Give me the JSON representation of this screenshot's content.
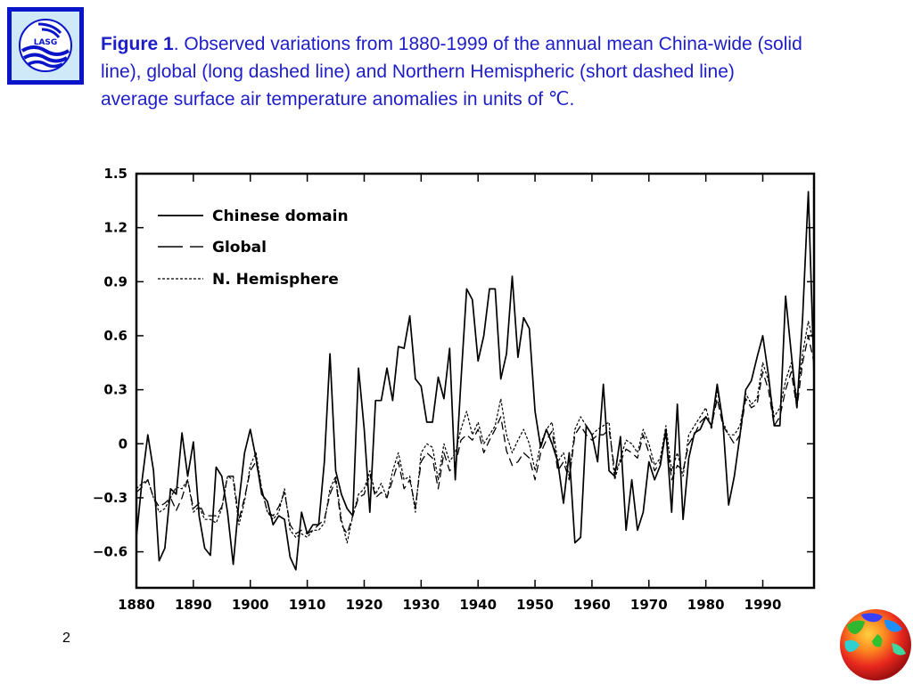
{
  "logo": {
    "text": "LASG"
  },
  "caption": {
    "bold": "Figure 1",
    "text": ". Observed variations from 1880-1999 of the annual mean China-wide (solid line), global (long dashed line) and Northern Hemispheric (short dashed line) average surface air temperature anomalies in units of ℃."
  },
  "slide_number": "2",
  "globe": {
    "icon": "earth-globe-icon"
  },
  "chart_data": {
    "type": "line",
    "title": "",
    "xlabel": "",
    "ylabel": "",
    "xlim": [
      1880,
      1999
    ],
    "ylim": [
      -0.8,
      1.5
    ],
    "x_ticks": [
      "1880",
      "1890",
      "1900",
      "1910",
      "1920",
      "1930",
      "1940",
      "1950",
      "1960",
      "1970",
      "1980",
      "1990"
    ],
    "y_ticks": [
      "1.5",
      "1.2",
      "0.9",
      "0.6",
      "0.3",
      "0",
      "−0.3",
      "−0.6"
    ],
    "legend_position": "top-left",
    "grid": false,
    "x": [
      1880,
      1881,
      1882,
      1883,
      1884,
      1885,
      1886,
      1887,
      1888,
      1889,
      1890,
      1891,
      1892,
      1893,
      1894,
      1895,
      1896,
      1897,
      1898,
      1899,
      1900,
      1901,
      1902,
      1903,
      1904,
      1905,
      1906,
      1907,
      1908,
      1909,
      1910,
      1911,
      1912,
      1913,
      1914,
      1915,
      1916,
      1917,
      1918,
      1919,
      1920,
      1921,
      1922,
      1923,
      1924,
      1925,
      1926,
      1927,
      1928,
      1929,
      1930,
      1931,
      1932,
      1933,
      1934,
      1935,
      1936,
      1937,
      1938,
      1939,
      1940,
      1941,
      1942,
      1943,
      1944,
      1945,
      1946,
      1947,
      1948,
      1949,
      1950,
      1951,
      1952,
      1953,
      1954,
      1955,
      1956,
      1957,
      1958,
      1959,
      1960,
      1961,
      1962,
      1963,
      1964,
      1965,
      1966,
      1967,
      1968,
      1969,
      1970,
      1971,
      1972,
      1973,
      1974,
      1975,
      1976,
      1977,
      1978,
      1979,
      1980,
      1981,
      1982,
      1983,
      1984,
      1985,
      1986,
      1987,
      1988,
      1989,
      1990,
      1991,
      1992,
      1993,
      1994,
      1995,
      1996,
      1997,
      1998,
      1999
    ],
    "series": [
      {
        "name": "Chinese domain",
        "style": "solid",
        "values": [
          -0.52,
          -0.2,
          0.05,
          -0.15,
          -0.65,
          -0.58,
          -0.25,
          -0.28,
          0.06,
          -0.18,
          0.01,
          -0.4,
          -0.58,
          -0.62,
          -0.13,
          -0.18,
          -0.38,
          -0.67,
          -0.32,
          -0.05,
          0.08,
          -0.08,
          -0.28,
          -0.32,
          -0.45,
          -0.4,
          -0.42,
          -0.63,
          -0.7,
          -0.38,
          -0.5,
          -0.45,
          -0.45,
          -0.1,
          0.5,
          -0.15,
          -0.28,
          -0.36,
          -0.4,
          0.42,
          0.08,
          -0.38,
          0.24,
          0.24,
          0.42,
          0.24,
          0.54,
          0.53,
          0.71,
          0.36,
          0.32,
          0.12,
          0.12,
          0.37,
          0.25,
          0.53,
          -0.2,
          0.35,
          0.86,
          0.8,
          0.46,
          0.6,
          0.86,
          0.86,
          0.36,
          0.5,
          0.93,
          0.48,
          0.7,
          0.64,
          0.18,
          -0.02,
          0.08,
          0.0,
          -0.1,
          -0.33,
          -0.05,
          -0.55,
          -0.52,
          0.1,
          0.05,
          -0.1,
          0.33,
          -0.15,
          -0.18,
          0.04,
          -0.48,
          -0.2,
          -0.48,
          -0.38,
          -0.1,
          -0.2,
          -0.12,
          0.08,
          -0.38,
          0.22,
          -0.42,
          -0.08,
          0.06,
          0.08,
          0.15,
          0.1,
          0.33,
          0.12,
          -0.34,
          -0.18,
          0.05,
          0.3,
          0.35,
          0.48,
          0.6,
          0.38,
          0.1,
          0.1,
          0.82,
          0.5,
          0.2,
          0.7,
          1.4,
          0.38
        ]
      },
      {
        "name": "Global",
        "style": "long-dash",
        "values": [
          -0.27,
          -0.24,
          -0.2,
          -0.3,
          -0.35,
          -0.33,
          -0.3,
          -0.37,
          -0.3,
          -0.2,
          -0.36,
          -0.33,
          -0.4,
          -0.4,
          -0.4,
          -0.35,
          -0.18,
          -0.18,
          -0.42,
          -0.3,
          -0.15,
          -0.1,
          -0.25,
          -0.38,
          -0.4,
          -0.35,
          -0.27,
          -0.45,
          -0.5,
          -0.48,
          -0.5,
          -0.48,
          -0.45,
          -0.42,
          -0.28,
          -0.2,
          -0.45,
          -0.5,
          -0.4,
          -0.3,
          -0.28,
          -0.17,
          -0.3,
          -0.27,
          -0.3,
          -0.2,
          -0.1,
          -0.25,
          -0.2,
          -0.35,
          -0.1,
          -0.05,
          -0.08,
          -0.25,
          -0.05,
          -0.15,
          -0.12,
          0.02,
          0.05,
          0.02,
          0.08,
          -0.05,
          0.02,
          0.08,
          0.15,
          -0.04,
          -0.12,
          -0.1,
          -0.05,
          -0.08,
          -0.2,
          -0.05,
          0.02,
          0.07,
          -0.15,
          -0.1,
          -0.2,
          0.05,
          0.1,
          0.05,
          0.02,
          0.05,
          0.05,
          0.08,
          -0.15,
          -0.1,
          -0.03,
          -0.05,
          -0.08,
          0.05,
          -0.05,
          -0.15,
          -0.1,
          0.05,
          -0.2,
          -0.12,
          -0.15,
          0.0,
          0.05,
          0.12,
          0.15,
          0.1,
          0.25,
          0.1,
          0.05,
          0.0,
          0.05,
          0.25,
          0.2,
          0.22,
          0.4,
          0.3,
          0.1,
          0.15,
          0.3,
          0.4,
          0.2,
          0.45,
          0.6,
          0.45
        ]
      },
      {
        "name": "N. Hemisphere",
        "style": "short-dash",
        "values": [
          -0.25,
          -0.22,
          -0.2,
          -0.3,
          -0.38,
          -0.36,
          -0.3,
          -0.24,
          -0.25,
          -0.2,
          -0.38,
          -0.35,
          -0.42,
          -0.42,
          -0.44,
          -0.36,
          -0.18,
          -0.2,
          -0.45,
          -0.32,
          -0.12,
          -0.05,
          -0.25,
          -0.38,
          -0.42,
          -0.38,
          -0.25,
          -0.48,
          -0.52,
          -0.5,
          -0.52,
          -0.48,
          -0.48,
          -0.44,
          -0.25,
          -0.18,
          -0.42,
          -0.55,
          -0.4,
          -0.28,
          -0.25,
          -0.15,
          -0.28,
          -0.22,
          -0.3,
          -0.15,
          -0.05,
          -0.2,
          -0.18,
          -0.38,
          -0.05,
          0.0,
          -0.02,
          -0.2,
          0.0,
          -0.1,
          -0.05,
          0.08,
          0.18,
          0.05,
          0.12,
          0.0,
          0.05,
          0.1,
          0.25,
          0.05,
          -0.05,
          0.02,
          0.08,
          0.0,
          -0.15,
          0.0,
          0.08,
          0.12,
          -0.1,
          -0.05,
          -0.18,
          0.08,
          0.15,
          0.1,
          0.05,
          0.08,
          0.1,
          0.12,
          -0.2,
          -0.08,
          0.02,
          0.0,
          -0.05,
          0.08,
          0.0,
          -0.12,
          -0.08,
          0.1,
          -0.15,
          -0.05,
          -0.18,
          0.05,
          0.1,
          0.15,
          0.2,
          0.08,
          0.3,
          0.12,
          0.05,
          0.05,
          0.1,
          0.28,
          0.22,
          0.25,
          0.45,
          0.35,
          0.15,
          0.2,
          0.35,
          0.45,
          0.25,
          0.5,
          0.68,
          0.55
        ]
      }
    ]
  }
}
